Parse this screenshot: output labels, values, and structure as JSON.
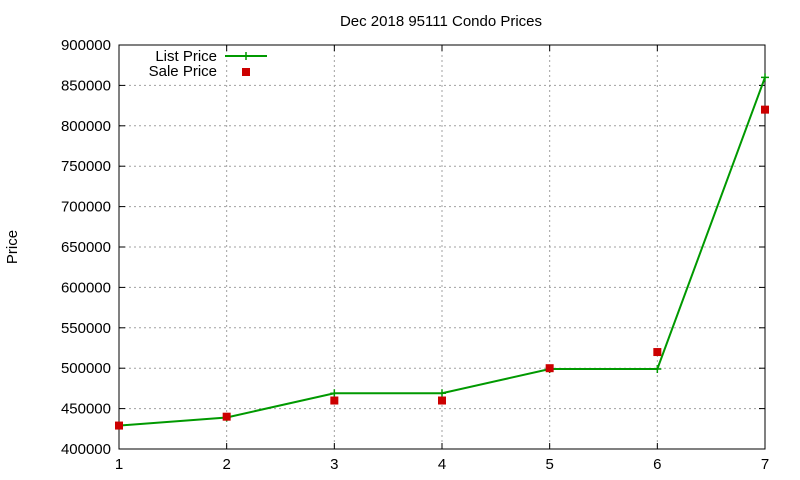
{
  "chart_data": {
    "type": "line",
    "title": "Dec 2018 95111 Condo Prices",
    "xlabel": "",
    "ylabel": "Price",
    "x": [
      1,
      2,
      3,
      4,
      5,
      6,
      7
    ],
    "xlim": [
      1,
      7
    ],
    "ylim": [
      400000,
      900000
    ],
    "xticks": [
      "1",
      "2",
      "3",
      "4",
      "5",
      "6",
      "7"
    ],
    "yticks": [
      "400000",
      "450000",
      "500000",
      "550000",
      "600000",
      "650000",
      "700000",
      "750000",
      "800000",
      "850000",
      "900000"
    ],
    "grid": true,
    "legend_position": "top-left",
    "series": [
      {
        "name": "List Price",
        "style": "line-with-plus-markers",
        "color": "#009900",
        "values": [
          429000,
          439000,
          469000,
          469000,
          499000,
          499000,
          860000
        ]
      },
      {
        "name": "Sale Price",
        "style": "square-markers",
        "color": "#cc0000",
        "values": [
          429000,
          440000,
          460000,
          460000,
          500000,
          520000,
          820000
        ]
      }
    ]
  }
}
